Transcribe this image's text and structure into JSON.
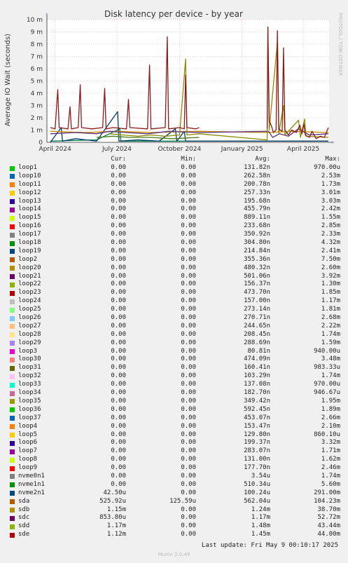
{
  "chart_data": {
    "type": "line",
    "title": "Disk latency per device - by year",
    "ylabel": "Average IO Wait (seconds)",
    "side_label": "RRDTOOL / TOBI OETIKER",
    "ylim": [
      0,
      0.01
    ],
    "y_ticks": [
      {
        "value": 0,
        "label": "0"
      },
      {
        "value": 0.001,
        "label": "1 m"
      },
      {
        "value": 0.002,
        "label": "2 m"
      },
      {
        "value": 0.003,
        "label": "3 m"
      },
      {
        "value": 0.004,
        "label": "4 m"
      },
      {
        "value": 0.005,
        "label": "5 m"
      },
      {
        "value": 0.006,
        "label": "6 m"
      },
      {
        "value": 0.007,
        "label": "7 m"
      },
      {
        "value": 0.008,
        "label": "8 m"
      },
      {
        "value": 0.009,
        "label": "9 m"
      },
      {
        "value": 0.01,
        "label": "10 m"
      }
    ],
    "x_ticks": [
      {
        "date": "2024-04-01",
        "label": "April 2024"
      },
      {
        "date": "2024-07-01",
        "label": "July 2024"
      },
      {
        "date": "2024-10-01",
        "label": "October 2024"
      },
      {
        "date": "2025-01-01",
        "label": "January 2025"
      },
      {
        "date": "2025-04-01",
        "label": "April 2025"
      }
    ],
    "xlim": [
      "2024-03-20",
      "2025-05-09"
    ],
    "grid": true,
    "series": [
      {
        "name": "sde",
        "color": "#8b1a1a",
        "points": [
          [
            "2024-03-25",
            0.0012
          ],
          [
            "2024-04-01",
            0.0011
          ],
          [
            "2024-04-05",
            0.0043
          ],
          [
            "2024-04-07",
            0.0012
          ],
          [
            "2024-04-20",
            0.0011
          ],
          [
            "2024-04-23",
            0.0029
          ],
          [
            "2024-04-25",
            0.0011
          ],
          [
            "2024-05-05",
            0.0012
          ],
          [
            "2024-05-08",
            0.0047
          ],
          [
            "2024-05-10",
            0.0012
          ],
          [
            "2024-05-25",
            0.0011
          ],
          [
            "2024-06-10",
            0.0012
          ],
          [
            "2024-06-13",
            0.0044
          ],
          [
            "2024-06-15",
            0.0011
          ],
          [
            "2024-06-25",
            0.0012
          ],
          [
            "2024-07-15",
            0.0011
          ],
          [
            "2024-07-18",
            0.0035
          ],
          [
            "2024-07-20",
            0.0012
          ],
          [
            "2024-08-15",
            0.0011
          ],
          [
            "2024-08-18",
            0.0063
          ],
          [
            "2024-08-20",
            0.0011
          ],
          [
            "2024-09-10",
            0.0012
          ],
          [
            "2024-09-13",
            0.0086
          ],
          [
            "2024-09-15",
            0.0011
          ],
          [
            "2024-10-01",
            0.0012
          ],
          [
            "2024-10-08",
            0.0011
          ],
          [
            "2024-10-10",
            0.0055
          ],
          [
            "2024-10-12",
            0.0012
          ],
          [
            "2024-10-25",
            0.0011
          ],
          [
            "2024-10-30",
            0.0012
          ]
        ]
      },
      {
        "name": "sde",
        "color": "#8b1a1a",
        "points": [
          [
            "2025-02-07",
            0.0011
          ],
          [
            "2025-02-08",
            0.0094
          ],
          [
            "2025-02-10",
            0.0018
          ],
          [
            "2025-02-14",
            0.0012
          ],
          [
            "2025-02-16",
            0.0008
          ],
          [
            "2025-02-20",
            0.001
          ],
          [
            "2025-02-22",
            0.0091
          ],
          [
            "2025-02-24",
            0.0011
          ],
          [
            "2025-03-01",
            0.0009
          ],
          [
            "2025-03-03",
            0.0077
          ],
          [
            "2025-03-05",
            0.001
          ],
          [
            "2025-03-10",
            0.0006
          ],
          [
            "2025-03-15",
            0.001
          ],
          [
            "2025-03-22",
            0.0008
          ],
          [
            "2025-03-27",
            0.0014
          ],
          [
            "2025-03-30",
            0.0007
          ],
          [
            "2025-04-02",
            0.0015
          ],
          [
            "2025-04-04",
            0.0006
          ],
          [
            "2025-04-10",
            0.0004
          ],
          [
            "2025-04-14",
            0.0009
          ],
          [
            "2025-04-20",
            0.0003
          ],
          [
            "2025-04-26",
            0.0005
          ],
          [
            "2025-05-02",
            0.0004
          ],
          [
            "2025-05-08",
            0.0012
          ]
        ]
      },
      {
        "name": "sdd",
        "color": "#8c8c00",
        "points": [
          [
            "2024-06-20",
            0.0007
          ],
          [
            "2024-07-10",
            0.0006
          ],
          [
            "2024-08-01",
            0.0005
          ],
          [
            "2024-08-20",
            0.0006
          ],
          [
            "2024-09-10",
            0.0005
          ],
          [
            "2024-10-01",
            0.0006
          ],
          [
            "2024-10-10",
            0.0068
          ],
          [
            "2024-10-12",
            0.0006
          ],
          [
            "2024-10-30",
            0.0007
          ],
          [
            "2025-02-07",
            0.0002
          ],
          [
            "2025-02-08",
            0.0093
          ],
          [
            "2025-02-10",
            0.001
          ],
          [
            "2025-02-22",
            0.0082
          ],
          [
            "2025-02-24",
            0.0007
          ],
          [
            "2025-03-03",
            0.003
          ],
          [
            "2025-03-05",
            0.0006
          ],
          [
            "2025-03-25",
            0.0018
          ],
          [
            "2025-03-28",
            0.0004
          ],
          [
            "2025-04-03",
            0.0019
          ],
          [
            "2025-04-05",
            0.0005
          ],
          [
            "2025-05-08",
            0.0004
          ]
        ]
      },
      {
        "name": "sdc",
        "color": "#5f2f7f",
        "points": [
          [
            "2024-03-25",
            0.0007
          ],
          [
            "2024-05-01",
            0.0008
          ],
          [
            "2024-06-01",
            0.0007
          ],
          [
            "2024-06-20",
            0.0009
          ],
          [
            "2024-07-15",
            0.0008
          ],
          [
            "2024-08-15",
            0.0007
          ],
          [
            "2024-09-15",
            0.0009
          ],
          [
            "2024-10-30",
            0.0008
          ],
          [
            "2025-02-09",
            0.0009
          ],
          [
            "2025-02-15",
            0.0004
          ],
          [
            "2025-02-25",
            0.0007
          ],
          [
            "2025-03-10",
            0.0005
          ],
          [
            "2025-03-25",
            0.0011
          ],
          [
            "2025-04-10",
            0.0006
          ],
          [
            "2025-05-08",
            0.0007
          ]
        ]
      },
      {
        "name": "sdb",
        "color": "#c88a00",
        "points": [
          [
            "2024-03-25",
            0.0009
          ],
          [
            "2024-05-15",
            0.0008
          ],
          [
            "2024-07-01",
            0.0009
          ],
          [
            "2024-08-20",
            0.0008
          ],
          [
            "2024-10-30",
            0.0009
          ],
          [
            "2025-02-09",
            0.0008
          ],
          [
            "2025-03-15",
            0.0009
          ],
          [
            "2025-05-08",
            0.0008
          ]
        ]
      },
      {
        "name": "sda",
        "color": "#4a7a1a",
        "points": [
          [
            "2024-06-01",
            0.0004
          ],
          [
            "2024-06-25",
            0.0005
          ],
          [
            "2024-07-20",
            0.0004
          ],
          [
            "2024-08-20",
            0.0004
          ],
          [
            "2024-09-20",
            0.0003
          ],
          [
            "2024-10-30",
            0.0004
          ]
        ]
      },
      {
        "name": "nvme2n1",
        "color": "#003d66",
        "points": [
          [
            "2024-03-25",
            0.0
          ],
          [
            "2024-04-10",
            0.0012
          ],
          [
            "2024-04-12",
            0.0001
          ],
          [
            "2024-05-01",
            0.0003
          ],
          [
            "2024-06-01",
            0.0001
          ],
          [
            "2024-07-02",
            0.0025
          ],
          [
            "2024-07-04",
            0.0001
          ],
          [
            "2024-08-01",
            0.0002
          ],
          [
            "2024-09-01",
            0.0001
          ],
          [
            "2024-09-25",
            0.0011
          ],
          [
            "2024-09-27",
            0.0001
          ],
          [
            "2024-10-08",
            0.0009
          ],
          [
            "2024-10-10",
            0.0001
          ],
          [
            "2024-10-30",
            0.0001
          ],
          [
            "2025-02-09",
            0.0001
          ],
          [
            "2025-05-08",
            0.0001
          ]
        ]
      },
      {
        "name": "nvme1n1",
        "color": "#00804d",
        "points": [
          [
            "2024-03-25",
            0.0001
          ],
          [
            "2024-06-01",
            0.0002
          ],
          [
            "2024-07-05",
            0.0011
          ],
          [
            "2024-07-07",
            0.0001
          ],
          [
            "2024-10-30",
            0.0001
          ],
          [
            "2025-02-09",
            0.0001
          ],
          [
            "2025-05-08",
            0.0001
          ]
        ]
      }
    ],
    "legend": {
      "columns": [
        "Cur:",
        "Min:",
        "Avg:",
        "Max:"
      ],
      "rows": [
        {
          "name": "loop1",
          "color": "#00cc00",
          "cur": "0.00",
          "min": "0.00",
          "avg": "131.82n",
          "max": "970.00u"
        },
        {
          "name": "loop10",
          "color": "#0066b3",
          "cur": "0.00",
          "min": "0.00",
          "avg": "262.58n",
          "max": "2.53m"
        },
        {
          "name": "loop11",
          "color": "#ff8000",
          "cur": "0.00",
          "min": "0.00",
          "avg": "200.78n",
          "max": "1.73m"
        },
        {
          "name": "loop12",
          "color": "#ffcc00",
          "cur": "0.00",
          "min": "0.00",
          "avg": "257.33n",
          "max": "3.01m"
        },
        {
          "name": "loop13",
          "color": "#330099",
          "cur": "0.00",
          "min": "0.00",
          "avg": "195.68n",
          "max": "3.03m"
        },
        {
          "name": "loop14",
          "color": "#990099",
          "cur": "0.00",
          "min": "0.00",
          "avg": "455.79n",
          "max": "2.42m"
        },
        {
          "name": "loop15",
          "color": "#ccff00",
          "cur": "0.00",
          "min": "0.00",
          "avg": "889.11n",
          "max": "1.55m"
        },
        {
          "name": "loop16",
          "color": "#ff0000",
          "cur": "0.00",
          "min": "0.00",
          "avg": "233.68n",
          "max": "2.85m"
        },
        {
          "name": "loop17",
          "color": "#808080",
          "cur": "0.00",
          "min": "0.00",
          "avg": "350.92n",
          "max": "2.33m"
        },
        {
          "name": "loop18",
          "color": "#008f00",
          "cur": "0.00",
          "min": "0.00",
          "avg": "304.80n",
          "max": "4.32m"
        },
        {
          "name": "loop19",
          "color": "#00487d",
          "cur": "0.00",
          "min": "0.00",
          "avg": "214.84n",
          "max": "2.41m"
        },
        {
          "name": "loop2",
          "color": "#b35a00",
          "cur": "0.00",
          "min": "0.00",
          "avg": "355.36n",
          "max": "7.50m"
        },
        {
          "name": "loop20",
          "color": "#b38f00",
          "cur": "0.00",
          "min": "0.00",
          "avg": "480.32n",
          "max": "2.60m"
        },
        {
          "name": "loop21",
          "color": "#6b006b",
          "cur": "0.00",
          "min": "0.00",
          "avg": "501.06n",
          "max": "3.92m"
        },
        {
          "name": "loop22",
          "color": "#8fb300",
          "cur": "0.00",
          "min": "0.00",
          "avg": "156.37n",
          "max": "1.30m"
        },
        {
          "name": "loop23",
          "color": "#b30000",
          "cur": "0.00",
          "min": "0.00",
          "avg": "473.70n",
          "max": "1.85m"
        },
        {
          "name": "loop24",
          "color": "#bebebe",
          "cur": "0.00",
          "min": "0.00",
          "avg": "157.00n",
          "max": "1.17m"
        },
        {
          "name": "loop25",
          "color": "#80ff80",
          "cur": "0.00",
          "min": "0.00",
          "avg": "273.14n",
          "max": "1.81m"
        },
        {
          "name": "loop26",
          "color": "#80c9ff",
          "cur": "0.00",
          "min": "0.00",
          "avg": "270.71n",
          "max": "2.68m"
        },
        {
          "name": "loop27",
          "color": "#ffc080",
          "cur": "0.00",
          "min": "0.00",
          "avg": "244.65n",
          "max": "2.22m"
        },
        {
          "name": "loop28",
          "color": "#ffe680",
          "cur": "0.00",
          "min": "0.00",
          "avg": "208.45n",
          "max": "1.74m"
        },
        {
          "name": "loop29",
          "color": "#aa80ff",
          "cur": "0.00",
          "min": "0.00",
          "avg": "288.69n",
          "max": "1.59m"
        },
        {
          "name": "loop3",
          "color": "#ee00cc",
          "cur": "0.00",
          "min": "0.00",
          "avg": "80.81n",
          "max": "940.00u"
        },
        {
          "name": "loop30",
          "color": "#ff8080",
          "cur": "0.00",
          "min": "0.00",
          "avg": "474.09n",
          "max": "3.48m"
        },
        {
          "name": "loop31",
          "color": "#666600",
          "cur": "0.00",
          "min": "0.00",
          "avg": "160.41n",
          "max": "983.33u"
        },
        {
          "name": "loop32",
          "color": "#ffbfff",
          "cur": "0.00",
          "min": "0.00",
          "avg": "103.29n",
          "max": "1.74m"
        },
        {
          "name": "loop33",
          "color": "#00ffcc",
          "cur": "0.00",
          "min": "0.00",
          "avg": "137.08n",
          "max": "970.00u"
        },
        {
          "name": "loop34",
          "color": "#cc6699",
          "cur": "0.00",
          "min": "0.00",
          "avg": "182.70n",
          "max": "946.67u"
        },
        {
          "name": "loop35",
          "color": "#999900",
          "cur": "0.00",
          "min": "0.00",
          "avg": "349.42n",
          "max": "1.95m"
        },
        {
          "name": "loop36",
          "color": "#00cc00",
          "cur": "0.00",
          "min": "0.00",
          "avg": "592.45n",
          "max": "1.89m"
        },
        {
          "name": "loop37",
          "color": "#0066b3",
          "cur": "0.00",
          "min": "0.00",
          "avg": "453.07n",
          "max": "2.66m"
        },
        {
          "name": "loop4",
          "color": "#ff8000",
          "cur": "0.00",
          "min": "0.00",
          "avg": "153.47n",
          "max": "2.10m"
        },
        {
          "name": "loop5",
          "color": "#ffcc00",
          "cur": "0.00",
          "min": "0.00",
          "avg": "129.80n",
          "max": "860.10u"
        },
        {
          "name": "loop6",
          "color": "#330099",
          "cur": "0.00",
          "min": "0.00",
          "avg": "199.37n",
          "max": "3.32m"
        },
        {
          "name": "loop7",
          "color": "#990099",
          "cur": "0.00",
          "min": "0.00",
          "avg": "283.07n",
          "max": "1.71m"
        },
        {
          "name": "loop8",
          "color": "#ccff00",
          "cur": "0.00",
          "min": "0.00",
          "avg": "131.00n",
          "max": "1.62m"
        },
        {
          "name": "loop9",
          "color": "#ff0000",
          "cur": "0.00",
          "min": "0.00",
          "avg": "177.70n",
          "max": "2.46m"
        },
        {
          "name": "nvme0n1",
          "color": "#808080",
          "cur": "0.00",
          "min": "0.00",
          "avg": "3.54u",
          "max": "1.74m"
        },
        {
          "name": "nvme1n1",
          "color": "#008f00",
          "cur": "0.00",
          "min": "0.00",
          "avg": "510.34u",
          "max": "5.60m"
        },
        {
          "name": "nvme2n1",
          "color": "#00487d",
          "cur": "42.50u",
          "min": "0.00",
          "avg": "100.24u",
          "max": "291.00m"
        },
        {
          "name": "sda",
          "color": "#b35a00",
          "cur": "525.92u",
          "min": "125.59u",
          "avg": "562.04u",
          "max": "104.23m"
        },
        {
          "name": "sdb",
          "color": "#b38f00",
          "cur": "1.15m",
          "min": "0.00",
          "avg": "1.24m",
          "max": "38.70m"
        },
        {
          "name": "sdc",
          "color": "#6b006b",
          "cur": "853.80u",
          "min": "0.00",
          "avg": "1.17m",
          "max": "52.72m"
        },
        {
          "name": "sdd",
          "color": "#8fb300",
          "cur": "1.17m",
          "min": "0.00",
          "avg": "1.48m",
          "max": "43.44m"
        },
        {
          "name": "sde",
          "color": "#b30000",
          "cur": "1.12m",
          "min": "0.00",
          "avg": "1.45m",
          "max": "44.00m"
        }
      ]
    }
  },
  "last_update": "Last update: Fri May  9 00:10:17 2025",
  "footer": "Munin 2.0.49"
}
